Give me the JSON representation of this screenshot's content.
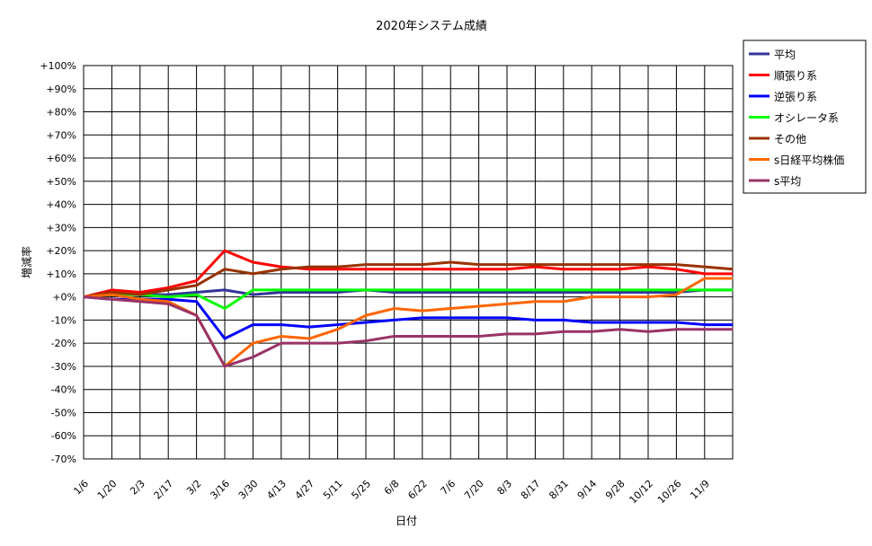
{
  "chart_data": {
    "type": "line",
    "title": "2020年システム成績",
    "xlabel": "日付",
    "ylabel": "増減率",
    "ylim": [
      -70,
      100
    ],
    "yticks": [
      100,
      90,
      80,
      70,
      60,
      50,
      40,
      30,
      20,
      10,
      0,
      -10,
      -20,
      -30,
      -40,
      -50,
      -60,
      -70
    ],
    "ytick_labels": [
      "+100%",
      "+90%",
      "+80%",
      "+70%",
      "+60%",
      "+50%",
      "+40%",
      "+30%",
      "+20%",
      "+10%",
      "+0%",
      "-10%",
      "-20%",
      "-30%",
      "-40%",
      "-50%",
      "-60%",
      "-70%"
    ],
    "x_tick_labels": [
      "1/6",
      "1/20",
      "2/3",
      "2/17",
      "3/2",
      "3/16",
      "3/30",
      "4/13",
      "4/27",
      "5/11",
      "5/25",
      "6/8",
      "6/22",
      "7/6",
      "7/20",
      "8/3",
      "8/17",
      "8/31",
      "9/14",
      "9/28",
      "10/12",
      "10/26",
      "11/9"
    ],
    "grid": true,
    "legend_position": "right",
    "legend": [
      {
        "name": "平均",
        "color": "#333399"
      },
      {
        "name": "順張り系",
        "color": "#ff0000"
      },
      {
        "name": "逆張り系",
        "color": "#0000ff"
      },
      {
        "name": "オシレータ系",
        "color": "#00ff00"
      },
      {
        "name": "その他",
        "color": "#993300"
      },
      {
        "name": "s日経平均株価",
        "color": "#ff6600"
      },
      {
        "name": "s平均",
        "color": "#993366"
      }
    ],
    "series": [
      {
        "name": "平均",
        "color": "#333399",
        "x": [
          "1/6",
          "1/20",
          "2/3",
          "2/17",
          "3/2",
          "3/16",
          "3/30",
          "4/13",
          "4/27",
          "5/11",
          "5/25",
          "6/8",
          "6/22",
          "7/6",
          "7/20",
          "8/3",
          "8/17",
          "8/31",
          "9/14",
          "9/28",
          "10/12",
          "10/26",
          "11/9",
          "11/20"
        ],
        "values": [
          0,
          1,
          1,
          1,
          2,
          3,
          1,
          2,
          2,
          2,
          3,
          2,
          2,
          2,
          2,
          2,
          2,
          2,
          2,
          2,
          2,
          2,
          3,
          3
        ]
      },
      {
        "name": "順張り系",
        "color": "#ff0000",
        "x": [
          "1/6",
          "1/20",
          "2/3",
          "2/17",
          "3/2",
          "3/16",
          "3/30",
          "4/13",
          "4/27",
          "5/11",
          "5/25",
          "6/8",
          "6/22",
          "7/6",
          "7/20",
          "8/3",
          "8/17",
          "8/31",
          "9/14",
          "9/28",
          "10/12",
          "10/26",
          "11/9",
          "11/20"
        ],
        "values": [
          0,
          3,
          2,
          4,
          7,
          20,
          15,
          13,
          12,
          12,
          12,
          12,
          12,
          12,
          12,
          12,
          13,
          12,
          12,
          12,
          13,
          12,
          10,
          10
        ]
      },
      {
        "name": "逆張り系",
        "color": "#0000ff",
        "x": [
          "1/6",
          "1/20",
          "2/3",
          "2/17",
          "3/2",
          "3/16",
          "3/30",
          "4/13",
          "4/27",
          "5/11",
          "5/25",
          "6/8",
          "6/22",
          "7/6",
          "7/20",
          "8/3",
          "8/17",
          "8/31",
          "9/14",
          "9/28",
          "10/12",
          "10/26",
          "11/9",
          "11/20"
        ],
        "values": [
          0,
          -1,
          -1,
          -1,
          -2,
          -18,
          -12,
          -12,
          -13,
          -12,
          -11,
          -10,
          -9,
          -9,
          -9,
          -9,
          -10,
          -10,
          -11,
          -11,
          -11,
          -11,
          -12,
          -12
        ]
      },
      {
        "name": "オシレータ系",
        "color": "#00ff00",
        "x": [
          "1/6",
          "1/20",
          "2/3",
          "2/17",
          "3/2",
          "3/16",
          "3/30",
          "4/13",
          "4/27",
          "5/11",
          "5/25",
          "6/8",
          "6/22",
          "7/6",
          "7/20",
          "8/3",
          "8/17",
          "8/31",
          "9/14",
          "9/28",
          "10/12",
          "10/26",
          "11/9",
          "11/20"
        ],
        "values": [
          0,
          1,
          1,
          0,
          1,
          -5,
          3,
          3,
          3,
          3,
          3,
          3,
          3,
          3,
          3,
          3,
          3,
          3,
          3,
          3,
          3,
          3,
          3,
          3
        ]
      },
      {
        "name": "その他",
        "color": "#993300",
        "x": [
          "1/6",
          "1/20",
          "2/3",
          "2/17",
          "3/2",
          "3/16",
          "3/30",
          "4/13",
          "4/27",
          "5/11",
          "5/25",
          "6/8",
          "6/22",
          "7/6",
          "7/20",
          "8/3",
          "8/17",
          "8/31",
          "9/14",
          "9/28",
          "10/12",
          "10/26",
          "11/9",
          "11/20"
        ],
        "values": [
          0,
          2,
          1,
          3,
          5,
          12,
          10,
          12,
          13,
          13,
          14,
          14,
          14,
          15,
          14,
          14,
          14,
          14,
          14,
          14,
          14,
          14,
          13,
          12
        ]
      },
      {
        "name": "s日経平均株価",
        "color": "#ff6600",
        "x": [
          "1/6",
          "1/20",
          "2/3",
          "2/17",
          "3/2",
          "3/16",
          "3/30",
          "4/13",
          "4/27",
          "5/11",
          "5/25",
          "6/8",
          "6/22",
          "7/6",
          "7/20",
          "8/3",
          "8/17",
          "8/31",
          "9/14",
          "9/28",
          "10/12",
          "10/26",
          "11/9",
          "11/20"
        ],
        "values": [
          0,
          1,
          -1,
          -2,
          -8,
          -30,
          -20,
          -17,
          -18,
          -14,
          -8,
          -5,
          -6,
          -5,
          -4,
          -3,
          -2,
          -2,
          0,
          0,
          0,
          1,
          8,
          8
        ]
      },
      {
        "name": "s平均",
        "color": "#993366",
        "x": [
          "1/6",
          "1/20",
          "2/3",
          "2/17",
          "3/2",
          "3/16",
          "3/30",
          "4/13",
          "4/27",
          "5/11",
          "5/25",
          "6/8",
          "6/22",
          "7/6",
          "7/20",
          "8/3",
          "8/17",
          "8/31",
          "9/14",
          "9/28",
          "10/12",
          "10/26",
          "11/9",
          "11/20"
        ],
        "values": [
          0,
          -1,
          -2,
          -3,
          -8,
          -30,
          -26,
          -20,
          -20,
          -20,
          -19,
          -17,
          -17,
          -17,
          -17,
          -16,
          -16,
          -15,
          -15,
          -14,
          -15,
          -14,
          -14,
          -14
        ]
      }
    ]
  }
}
